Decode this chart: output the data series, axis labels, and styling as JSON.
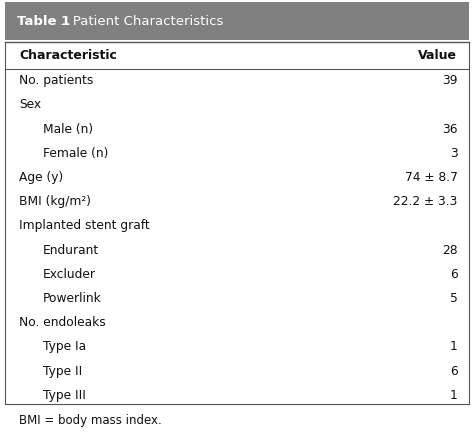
{
  "title_bold": "Table 1",
  "title_normal": " .  Patient Characteristics",
  "header_bg": "#808080",
  "header_text_color": "#ffffff",
  "table_bg": "#ffffff",
  "rows": [
    {
      "label": "Characteristic",
      "value": "Value",
      "indent": 0,
      "bold": true,
      "is_header": true
    },
    {
      "label": "No. patients",
      "value": "39",
      "indent": 0,
      "bold": false
    },
    {
      "label": "Sex",
      "value": "",
      "indent": 0,
      "bold": false
    },
    {
      "label": "Male (n)",
      "value": "36",
      "indent": 1,
      "bold": false
    },
    {
      "label": "Female (n)",
      "value": "3",
      "indent": 1,
      "bold": false
    },
    {
      "label": "Age (y)",
      "value": "74 ± 8.7",
      "indent": 0,
      "bold": false
    },
    {
      "label": "BMI (kg/m²)",
      "value": "22.2 ± 3.3",
      "indent": 0,
      "bold": false
    },
    {
      "label": "Implanted stent graft",
      "value": "",
      "indent": 0,
      "bold": false
    },
    {
      "label": "Endurant",
      "value": "28",
      "indent": 1,
      "bold": false
    },
    {
      "label": "Excluder",
      "value": "6",
      "indent": 1,
      "bold": false
    },
    {
      "label": "Powerlink",
      "value": "5",
      "indent": 1,
      "bold": false
    },
    {
      "label": "No. endoleaks",
      "value": "",
      "indent": 0,
      "bold": false
    },
    {
      "label": "Type Ia",
      "value": "1",
      "indent": 1,
      "bold": false
    },
    {
      "label": "Type II",
      "value": "6",
      "indent": 1,
      "bold": false
    },
    {
      "label": "Type III",
      "value": "1",
      "indent": 1,
      "bold": false
    }
  ],
  "footnote": "BMI = body mass index.",
  "fig_width": 4.74,
  "fig_height": 4.32,
  "dpi": 100
}
